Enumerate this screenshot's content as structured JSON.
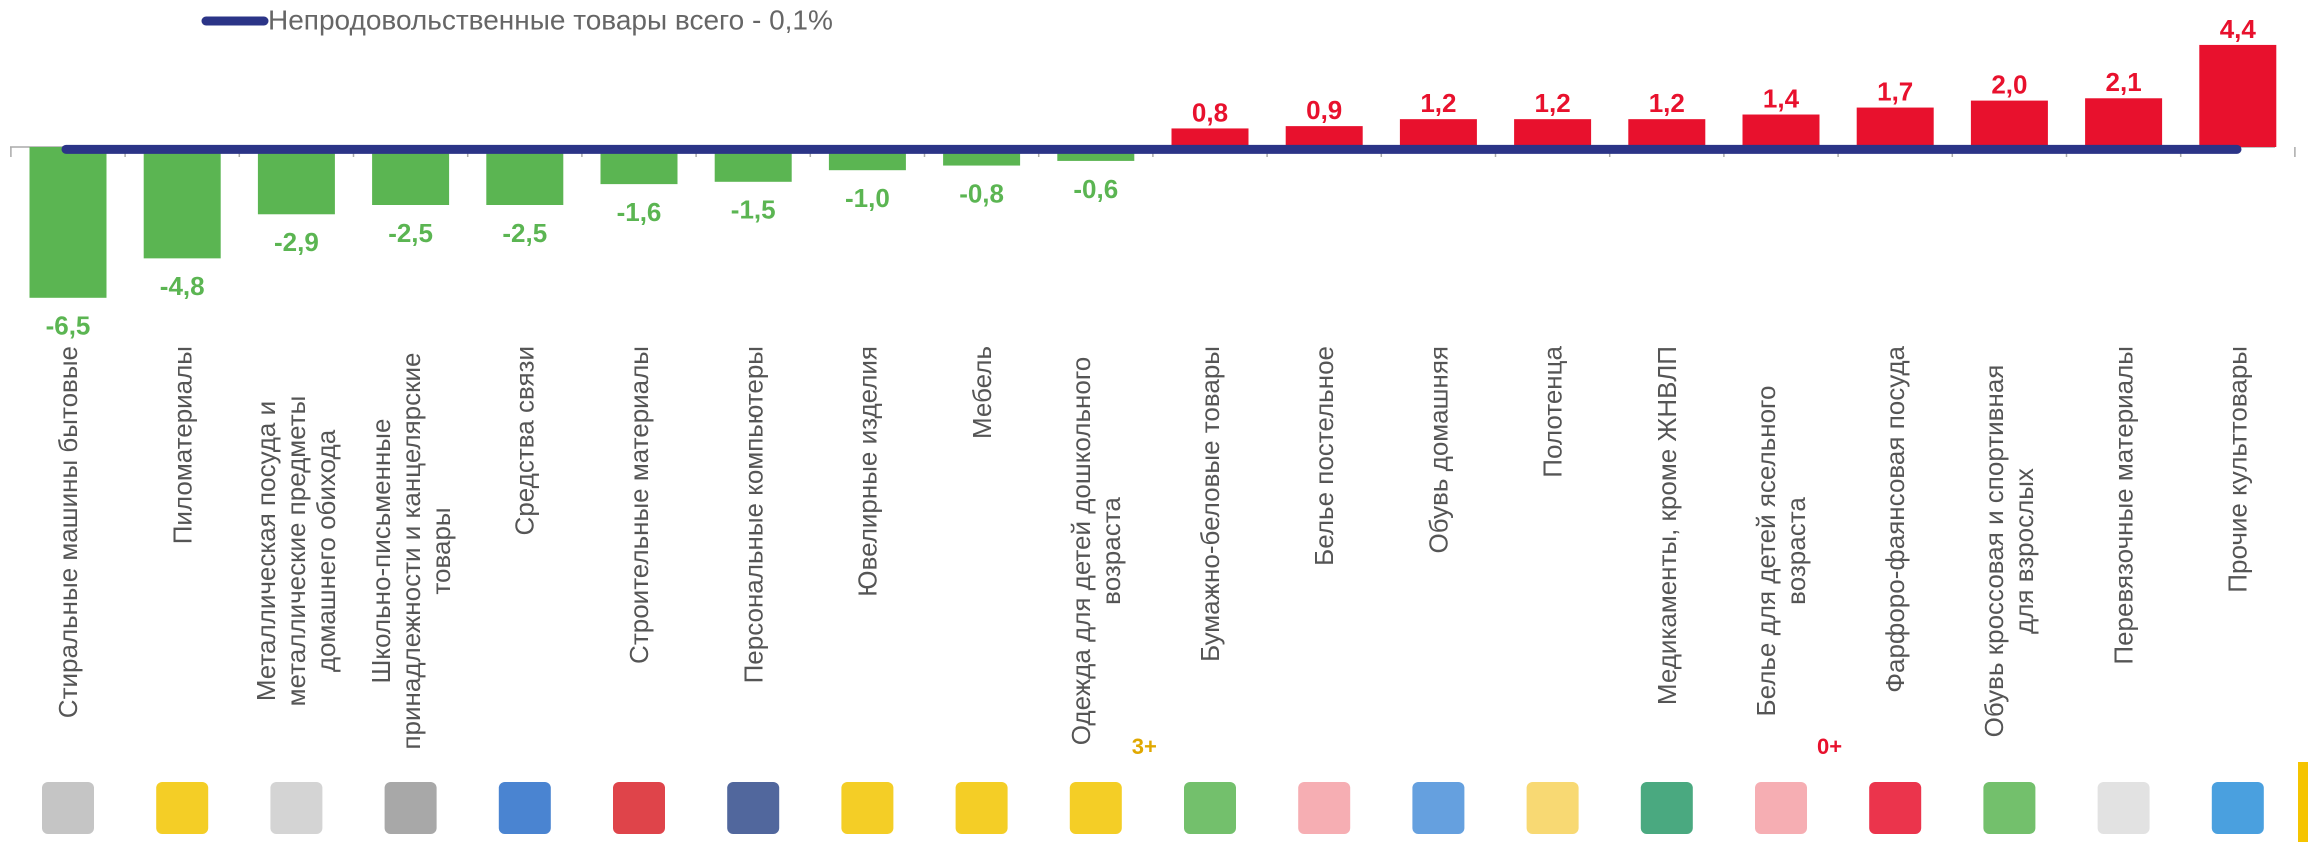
{
  "chart_data": {
    "type": "bar",
    "categories": [
      "Стиральные машины бытовые",
      "Пиломатериалы",
      "Металлическая посуда и металлические предметы домашнего обихода",
      "Школьно-письменные принадлежности и канцелярские товары",
      "Средства связи",
      "Строительные материалы",
      "Персональные компьютеры",
      "Ювелирные изделия",
      "Мебель",
      "Одежда для детей дошкольного возраста",
      "Бумажно-беловые товары",
      "Белье постельное",
      "Обувь домашняя",
      "Полотенца",
      "Медикаменты, кроме ЖНВЛП",
      "Белье для детей ясельного возраста",
      "Фарфоро-фаянсовая посуда",
      "Обувь кроссовая и спортивная для взрослых",
      "Перевязочные материалы",
      "Прочие культтовары"
    ],
    "values": [
      -6.5,
      -4.8,
      -2.9,
      -2.5,
      -2.5,
      -1.6,
      -1.5,
      -1.0,
      -0.8,
      -0.6,
      0.8,
      0.9,
      1.2,
      1.2,
      1.2,
      1.4,
      1.7,
      2.0,
      2.1,
      4.4
    ],
    "value_labels": [
      "-6,5",
      "-4,8",
      "-2,9",
      "-2,5",
      "-2,5",
      "-1,6",
      "-1,5",
      "-1,0",
      "-0,8",
      "-0,6",
      "0,8",
      "0,9",
      "1,2",
      "1,2",
      "1,2",
      "1,4",
      "1,7",
      "2,0",
      "2,1",
      "4,4"
    ],
    "negative_color": "#5bb552",
    "positive_color": "#e8112d",
    "reference_line": {
      "label": "Непродовольственные товары всего  - 0,1%",
      "value": -0.1,
      "color": "#2b3487"
    },
    "annotations": [
      "3+",
      "0+"
    ]
  }
}
